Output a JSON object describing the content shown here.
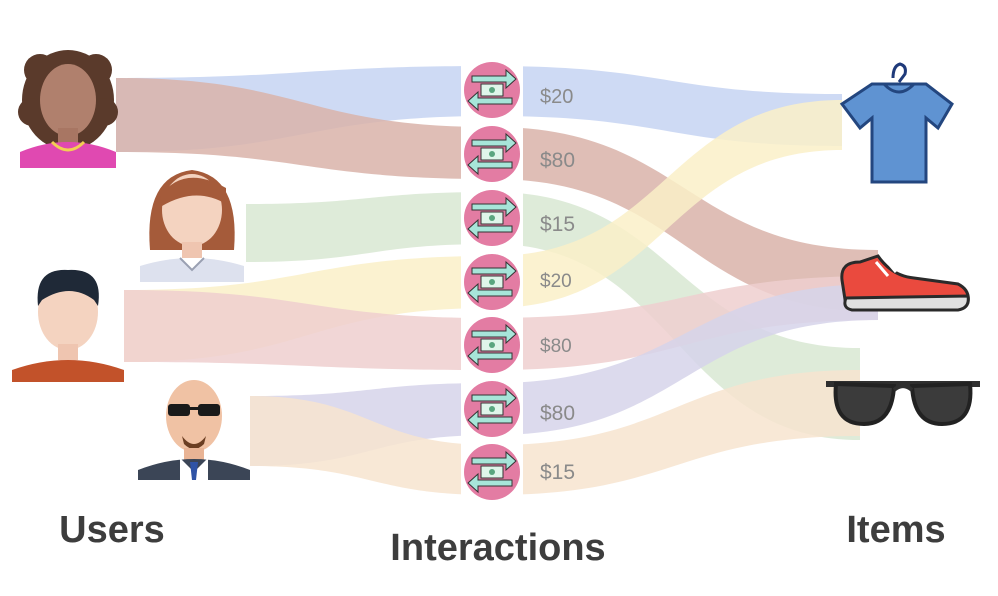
{
  "labels": {
    "users": "Users",
    "interactions": "Interactions",
    "items": "Items"
  },
  "users": [
    {
      "name": "user-woman-curly-hair"
    },
    {
      "name": "user-woman-bob-hair"
    },
    {
      "name": "user-man-dark-hair"
    },
    {
      "name": "user-man-bald-sunglasses"
    }
  ],
  "items": [
    {
      "name": "t-shirt"
    },
    {
      "name": "sneaker"
    },
    {
      "name": "sunglasses"
    }
  ],
  "interactions": [
    {
      "price": "$20",
      "from": 0,
      "to": 0,
      "color": "#c6d3f2"
    },
    {
      "price": "$80",
      "from": 0,
      "to": 1,
      "color": "#d9b3a9"
    },
    {
      "price": "$15",
      "from": 1,
      "to": 2,
      "color": "#d8e8d2"
    },
    {
      "price": "$20",
      "from": 2,
      "to": 0,
      "color": "#faf0c8"
    },
    {
      "price": "$80",
      "from": 2,
      "to": 1,
      "color": "#efcfcf"
    },
    {
      "price": "$80",
      "from": 3,
      "to": 1,
      "color": "#d6d3ea"
    },
    {
      "price": "$15",
      "from": 3,
      "to": 2,
      "color": "#f7e4cf"
    }
  ],
  "colors": {
    "exchange_icon_bg": "#e37ca3",
    "exchange_icon_arrow": "#a7e5d9",
    "price_text": "#8a8a8a",
    "label_text": "#3d3d3d"
  }
}
